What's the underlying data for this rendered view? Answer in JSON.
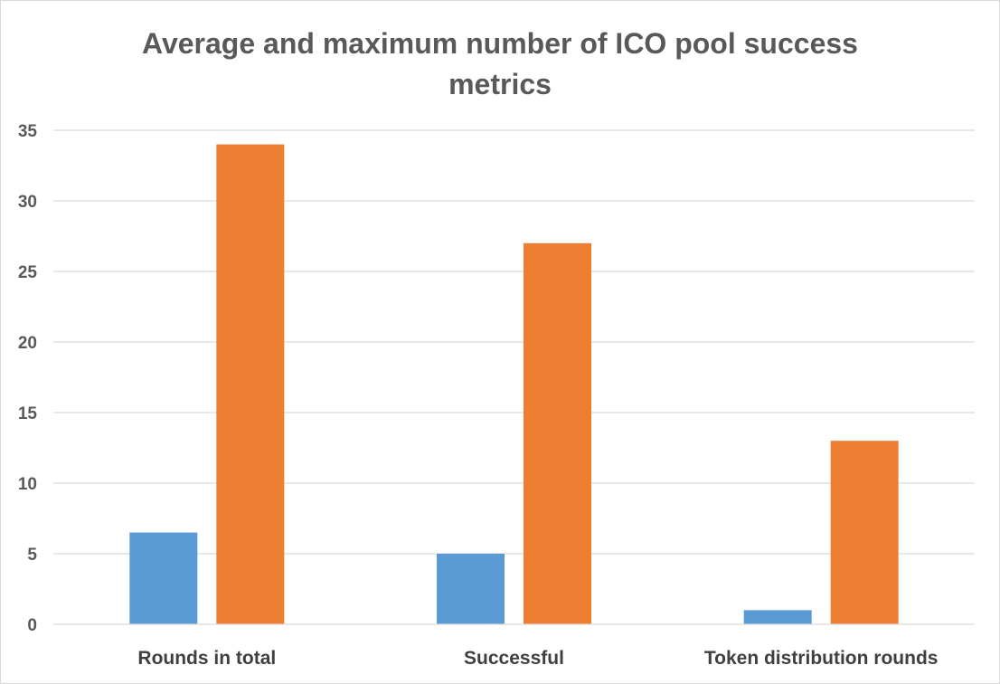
{
  "chart_data": {
    "type": "bar",
    "title_lines": [
      "Average and maximum number of ICO pool success",
      "metrics"
    ],
    "categories": [
      "Rounds in total",
      "Successful",
      "Token distribution rounds"
    ],
    "series": [
      {
        "values": [
          6.5,
          5,
          1
        ],
        "color": "#5b9bd5"
      },
      {
        "values": [
          34,
          27,
          13
        ],
        "color": "#ed7d31"
      }
    ],
    "ylim": [
      0,
      35
    ],
    "yticks": [
      0,
      5,
      10,
      15,
      20,
      25,
      30,
      35
    ],
    "grid": true,
    "legend": "none"
  }
}
